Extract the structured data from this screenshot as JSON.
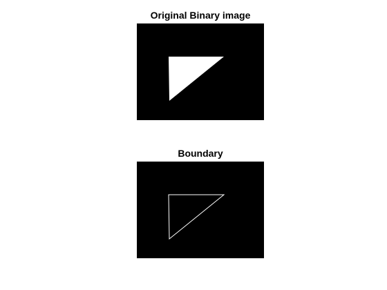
{
  "figure": {
    "panels": [
      {
        "title": "Original Binary image",
        "render": "filled"
      },
      {
        "title": "Boundary",
        "render": "outline"
      }
    ],
    "colors": {
      "figure_background": "#ffffff",
      "image_background": "#000000",
      "shape": "#ffffff"
    }
  }
}
